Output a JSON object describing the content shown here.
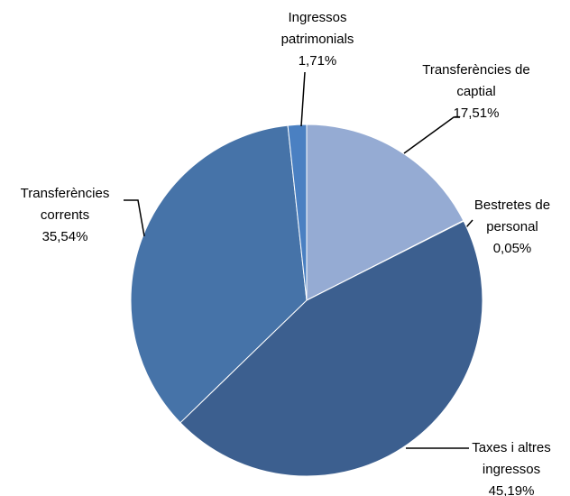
{
  "chart_data": {
    "type": "pie",
    "categories": [
      "Transferències de captial",
      "Bestretes de personal",
      "Taxes i altres ingressos",
      "Transferències corrents",
      "Ingressos patrimonials"
    ],
    "values": [
      17.51,
      0.05,
      45.19,
      35.54,
      1.71
    ],
    "value_labels": [
      "17,51%",
      "0,05%",
      "45,19%",
      "35,54%",
      "1,71%"
    ],
    "colors": [
      "#95abd3",
      "#5a85bd",
      "#3c5f8f",
      "#4673a8",
      "#4a80c2"
    ]
  }
}
